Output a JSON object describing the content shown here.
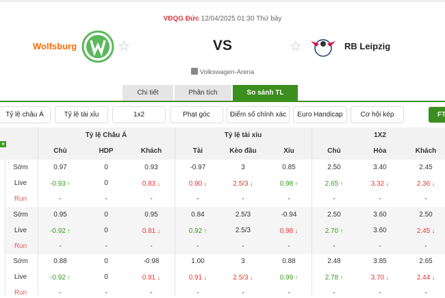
{
  "match": {
    "league": "VĐQG Đức",
    "datetime": "12/04/2025 01:30 Thứ bảy",
    "home": "Wolfsburg",
    "away": "RB Leipzig",
    "vs": "VS",
    "venue": "Volkswagen-Arena"
  },
  "tabs": [
    {
      "label": "Chi tiết"
    },
    {
      "label": "Phân tích"
    },
    {
      "label": "So sánh TL",
      "active": true
    }
  ],
  "buttons": [
    "Tỷ lệ châu Á",
    "Tỷ lệ tài xỉu",
    "1x2",
    "Phạt góc",
    "Điểm số chính xác",
    "Euro Handicap",
    "Cơ hội kép",
    "FT"
  ],
  "colors": {
    "accent": "#3c8e1f",
    "up": "#3a9b1f",
    "down": "#f03232",
    "league": "#d9383a",
    "home": "#ff6a00"
  },
  "table": {
    "groups": [
      "Tỷ lệ Châu Á",
      "Tỷ lệ tài xỉu",
      "1X2"
    ],
    "columns": [
      "Chủ",
      "HDP",
      "Khách",
      "Tài",
      "Kèo đầu",
      "Xỉu",
      "Chủ",
      "Hòa",
      "Khách"
    ],
    "rows": [
      {
        "label": "Sớm",
        "cells": [
          [
            "0.97",
            ""
          ],
          [
            "0",
            ""
          ],
          [
            "0.93",
            ""
          ],
          [
            "-0.97",
            ""
          ],
          [
            "3",
            ""
          ],
          [
            "0.85",
            ""
          ],
          [
            "2.50",
            ""
          ],
          [
            "3.40",
            ""
          ],
          [
            "2.45",
            ""
          ]
        ]
      },
      {
        "label": "Live",
        "cells": [
          [
            "-0.93",
            "up"
          ],
          [
            "0",
            ""
          ],
          [
            "0.83",
            "down"
          ],
          [
            "0.90",
            "down"
          ],
          [
            "2.5/3",
            "down"
          ],
          [
            "0.98",
            "up"
          ],
          [
            "2.65",
            "up"
          ],
          [
            "3.32",
            "down"
          ],
          [
            "2.36",
            "down"
          ]
        ]
      },
      {
        "label": "Run",
        "cells": [
          [
            "-",
            ""
          ],
          [
            "-",
            ""
          ],
          [
            "-",
            ""
          ],
          [
            "-",
            ""
          ],
          [
            "-",
            ""
          ],
          [
            "-",
            ""
          ],
          [
            "-",
            ""
          ],
          [
            "-",
            ""
          ],
          [
            "-",
            ""
          ]
        ]
      },
      {
        "label": "Sớm",
        "cells": [
          [
            "0.95",
            ""
          ],
          [
            "0",
            ""
          ],
          [
            "0.95",
            ""
          ],
          [
            "0.84",
            ""
          ],
          [
            "2.5/3",
            ""
          ],
          [
            "-0.94",
            ""
          ],
          [
            "2.50",
            ""
          ],
          [
            "3.60",
            ""
          ],
          [
            "2.50",
            ""
          ]
        ]
      },
      {
        "label": "Live",
        "cells": [
          [
            "-0.92",
            "up"
          ],
          [
            "0",
            ""
          ],
          [
            "0.81",
            "down"
          ],
          [
            "0.92",
            "up"
          ],
          [
            "2.5/3",
            ""
          ],
          [
            "0.98",
            "down"
          ],
          [
            "2.70",
            "up"
          ],
          [
            "3.60",
            ""
          ],
          [
            "2.45",
            "down"
          ]
        ]
      },
      {
        "label": "Run",
        "cells": [
          [
            "-",
            ""
          ],
          [
            "-",
            ""
          ],
          [
            "-",
            ""
          ],
          [
            "-",
            ""
          ],
          [
            "-",
            ""
          ],
          [
            "-",
            ""
          ],
          [
            "-",
            ""
          ],
          [
            "-",
            ""
          ],
          [
            "-",
            ""
          ]
        ]
      },
      {
        "label": "Sớm",
        "cells": [
          [
            "0.88",
            ""
          ],
          [
            "0",
            ""
          ],
          [
            "-0.98",
            ""
          ],
          [
            "1.00",
            ""
          ],
          [
            "3",
            ""
          ],
          [
            "0.88",
            ""
          ],
          [
            "2.48",
            ""
          ],
          [
            "3.85",
            ""
          ],
          [
            "2.65",
            ""
          ]
        ]
      },
      {
        "label": "Live",
        "cells": [
          [
            "-0.92",
            "up"
          ],
          [
            "0",
            ""
          ],
          [
            "0.81",
            "down"
          ],
          [
            "0.91",
            "down"
          ],
          [
            "2.5/3",
            "down"
          ],
          [
            "0.99",
            "up"
          ],
          [
            "2.78",
            "up"
          ],
          [
            "3.70",
            "down"
          ],
          [
            "2.44",
            "down"
          ]
        ]
      },
      {
        "label": "Run",
        "cells": [
          [
            "-",
            ""
          ],
          [
            "-",
            ""
          ],
          [
            "-",
            ""
          ],
          [
            "-",
            ""
          ],
          [
            "-",
            ""
          ],
          [
            "-",
            ""
          ],
          [
            "-",
            ""
          ],
          [
            "-",
            ""
          ],
          [
            "-",
            ""
          ]
        ]
      }
    ]
  }
}
